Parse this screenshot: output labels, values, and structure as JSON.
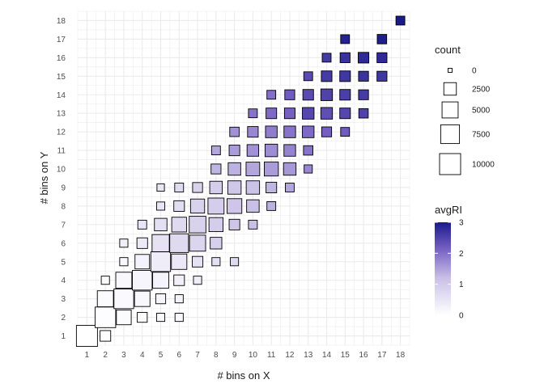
{
  "chart_data": {
    "type": "scatter",
    "xlabel": "# bins on X",
    "ylabel": "# bins on Y",
    "x_ticks": [
      1,
      2,
      3,
      4,
      5,
      6,
      7,
      8,
      9,
      10,
      11,
      12,
      13,
      14,
      15,
      16,
      17,
      18
    ],
    "y_ticks": [
      1,
      2,
      3,
      4,
      5,
      6,
      7,
      8,
      9,
      10,
      11,
      12,
      13,
      14,
      15,
      16,
      17,
      18
    ],
    "xlim": [
      0.5,
      18.5
    ],
    "ylim": [
      0.5,
      18.5
    ],
    "grid": true,
    "marker": "square",
    "size_legend": {
      "title": "count",
      "breaks": [
        0,
        2500,
        5000,
        7500,
        10000
      ],
      "labels": [
        "0",
        "2500",
        "5000",
        "7500",
        "10000"
      ]
    },
    "color_legend": {
      "title": "avgRI",
      "range": [
        0,
        3
      ],
      "breaks": [
        0,
        1,
        2,
        3
      ],
      "labels": [
        "0",
        "1",
        "2",
        "3"
      ],
      "low_color": "#ffffff",
      "high_color": "#1a1a8c"
    },
    "columns": [
      "x",
      "y",
      "count",
      "avgRI"
    ],
    "points": [
      [
        1,
        1,
        10000,
        0.0
      ],
      [
        2,
        1,
        1500,
        0.02
      ],
      [
        2,
        2,
        9500,
        0.05
      ],
      [
        3,
        2,
        4000,
        0.08
      ],
      [
        4,
        2,
        1200,
        0.1
      ],
      [
        5,
        2,
        600,
        0.12
      ],
      [
        6,
        2,
        600,
        0.15
      ],
      [
        2,
        3,
        5000,
        0.08
      ],
      [
        3,
        3,
        8500,
        0.12
      ],
      [
        4,
        3,
        4500,
        0.15
      ],
      [
        5,
        3,
        1200,
        0.2
      ],
      [
        6,
        3,
        600,
        0.22
      ],
      [
        2,
        4,
        600,
        0.1
      ],
      [
        3,
        4,
        5000,
        0.15
      ],
      [
        4,
        4,
        8500,
        0.2
      ],
      [
        5,
        4,
        5000,
        0.25
      ],
      [
        6,
        4,
        1500,
        0.3
      ],
      [
        7,
        4,
        600,
        0.35
      ],
      [
        3,
        5,
        600,
        0.15
      ],
      [
        4,
        5,
        3800,
        0.25
      ],
      [
        5,
        5,
        8500,
        0.35
      ],
      [
        6,
        5,
        4500,
        0.45
      ],
      [
        7,
        5,
        1500,
        0.55
      ],
      [
        8,
        5,
        600,
        0.6
      ],
      [
        9,
        5,
        600,
        0.7
      ],
      [
        3,
        6,
        600,
        0.3
      ],
      [
        4,
        6,
        1500,
        0.4
      ],
      [
        5,
        6,
        6000,
        0.55
      ],
      [
        6,
        6,
        7500,
        0.7
      ],
      [
        7,
        6,
        5000,
        0.8
      ],
      [
        8,
        6,
        2000,
        0.9
      ],
      [
        4,
        7,
        800,
        0.5
      ],
      [
        5,
        7,
        2500,
        0.6
      ],
      [
        6,
        7,
        4000,
        0.7
      ],
      [
        7,
        7,
        5500,
        0.85
      ],
      [
        8,
        7,
        3500,
        0.95
      ],
      [
        9,
        7,
        1500,
        1.1
      ],
      [
        10,
        7,
        800,
        1.2
      ],
      [
        5,
        8,
        600,
        0.5
      ],
      [
        6,
        8,
        1500,
        0.65
      ],
      [
        7,
        8,
        3500,
        0.85
      ],
      [
        8,
        8,
        5000,
        0.95
      ],
      [
        9,
        8,
        4000,
        1.1
      ],
      [
        10,
        8,
        2500,
        1.2
      ],
      [
        11,
        8,
        800,
        1.35
      ],
      [
        5,
        9,
        400,
        0.5
      ],
      [
        6,
        9,
        800,
        0.7
      ],
      [
        7,
        9,
        1200,
        0.85
      ],
      [
        8,
        9,
        2500,
        0.95
      ],
      [
        9,
        9,
        3000,
        1.05
      ],
      [
        10,
        9,
        3000,
        1.15
      ],
      [
        11,
        9,
        1500,
        1.3
      ],
      [
        12,
        9,
        800,
        1.45
      ],
      [
        8,
        10,
        1200,
        1.3
      ],
      [
        9,
        10,
        2500,
        1.35
      ],
      [
        10,
        10,
        3200,
        1.45
      ],
      [
        11,
        10,
        3500,
        1.55
      ],
      [
        12,
        10,
        2500,
        1.6
      ],
      [
        13,
        10,
        600,
        1.75
      ],
      [
        8,
        11,
        800,
        1.45
      ],
      [
        9,
        11,
        1500,
        1.55
      ],
      [
        10,
        11,
        2000,
        1.65
      ],
      [
        11,
        11,
        2500,
        1.7
      ],
      [
        12,
        11,
        2000,
        1.8
      ],
      [
        13,
        11,
        1000,
        1.95
      ],
      [
        9,
        12,
        1000,
        1.65
      ],
      [
        10,
        12,
        1500,
        1.75
      ],
      [
        11,
        12,
        2000,
        1.85
      ],
      [
        12,
        12,
        2000,
        1.95
      ],
      [
        13,
        12,
        2000,
        2.05
      ],
      [
        14,
        12,
        1200,
        2.15
      ],
      [
        15,
        12,
        800,
        2.2
      ],
      [
        10,
        13,
        800,
        1.95
      ],
      [
        11,
        13,
        1500,
        2.05
      ],
      [
        12,
        13,
        1500,
        2.15
      ],
      [
        13,
        13,
        2000,
        2.45
      ],
      [
        14,
        13,
        2000,
        2.35
      ],
      [
        15,
        13,
        1500,
        2.45
      ],
      [
        16,
        13,
        1000,
        2.5
      ],
      [
        11,
        14,
        800,
        2.0
      ],
      [
        12,
        14,
        1200,
        2.2
      ],
      [
        13,
        14,
        1500,
        2.4
      ],
      [
        14,
        14,
        2000,
        2.5
      ],
      [
        15,
        14,
        1500,
        2.55
      ],
      [
        16,
        14,
        1200,
        2.6
      ],
      [
        13,
        15,
        800,
        2.4
      ],
      [
        14,
        15,
        1500,
        2.6
      ],
      [
        15,
        15,
        1500,
        2.65
      ],
      [
        16,
        15,
        1200,
        2.7
      ],
      [
        17,
        15,
        1200,
        2.65
      ],
      [
        14,
        16,
        800,
        2.6
      ],
      [
        15,
        16,
        1200,
        2.7
      ],
      [
        16,
        16,
        1500,
        2.8
      ],
      [
        17,
        16,
        1200,
        2.8
      ],
      [
        15,
        17,
        800,
        2.9
      ],
      [
        17,
        17,
        1000,
        2.95
      ],
      [
        18,
        18,
        800,
        3.0
      ]
    ]
  }
}
